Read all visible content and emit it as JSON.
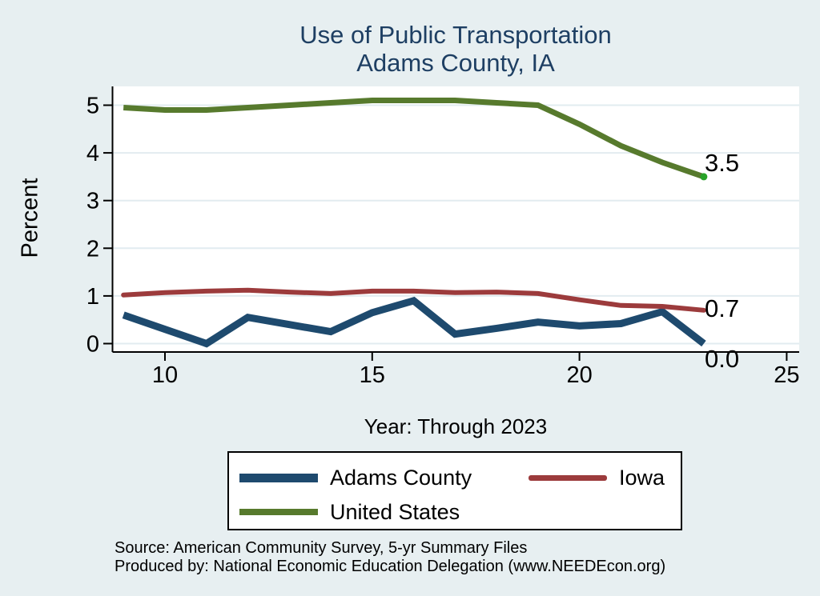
{
  "title": {
    "line1": "Use of Public Transportation",
    "line2": "Adams County, IA"
  },
  "axes": {
    "y_label": "Percent",
    "x_caption": "Year: Through 2023"
  },
  "end_labels": {
    "united_states": "3.5",
    "iowa": "0.7",
    "adams_county": "0.0"
  },
  "legend": {
    "items": [
      {
        "label": "Adams County",
        "color": "#1e4a6e"
      },
      {
        "label": "Iowa",
        "color": "#9c3b3c"
      },
      {
        "label": "United States",
        "color": "#577a2d"
      }
    ]
  },
  "source": {
    "line1": "Source: American Community Survey, 5-yr Summary Files",
    "line2": "Produced by: National Economic Education Delegation (www.NEEDEcon.org)"
  },
  "colors": {
    "background": "#e7eff1",
    "plot_background": "#ffffff",
    "gridline": "#e2ecf0",
    "axis": "#000000",
    "title_text": "#1e3f63",
    "united_states_end_marker": "#28a228"
  },
  "chart_data": {
    "type": "line",
    "title": "Use of Public Transportation - Adams County, IA",
    "xlabel": "Year: Through 2023",
    "ylabel": "Percent",
    "x": [
      9,
      10,
      11,
      12,
      13,
      14,
      15,
      16,
      17,
      18,
      19,
      20,
      21,
      22,
      23
    ],
    "series": [
      {
        "name": "Adams County",
        "color": "#1e4a6e",
        "width": 9,
        "values": [
          0.6,
          0.3,
          0.0,
          0.55,
          0.4,
          0.25,
          0.65,
          0.9,
          0.2,
          0.32,
          0.45,
          0.37,
          0.42,
          0.67,
          0.0
        ],
        "end_label": "0.0"
      },
      {
        "name": "Iowa",
        "color": "#9c3b3c",
        "width": 6,
        "linecap": "round",
        "values": [
          1.02,
          1.07,
          1.1,
          1.12,
          1.08,
          1.05,
          1.1,
          1.1,
          1.07,
          1.08,
          1.05,
          0.92,
          0.8,
          0.78,
          0.7
        ],
        "end_label": "0.7"
      },
      {
        "name": "United States",
        "color": "#577a2d",
        "width": 7,
        "values": [
          4.95,
          4.9,
          4.9,
          4.95,
          5.0,
          5.05,
          5.1,
          5.1,
          5.1,
          5.05,
          5.0,
          4.6,
          4.15,
          3.8,
          3.5
        ],
        "end_label": "3.5",
        "end_marker_color": "#28a228"
      }
    ],
    "x_tick_values": [
      10,
      15,
      20,
      25
    ],
    "y_tick_values": [
      0,
      1,
      2,
      3,
      4,
      5
    ],
    "xlim": [
      8.7,
      25.3
    ],
    "ylim": [
      -0.2,
      5.4
    ],
    "grid": "horizontal",
    "legend_position": "bottom"
  }
}
